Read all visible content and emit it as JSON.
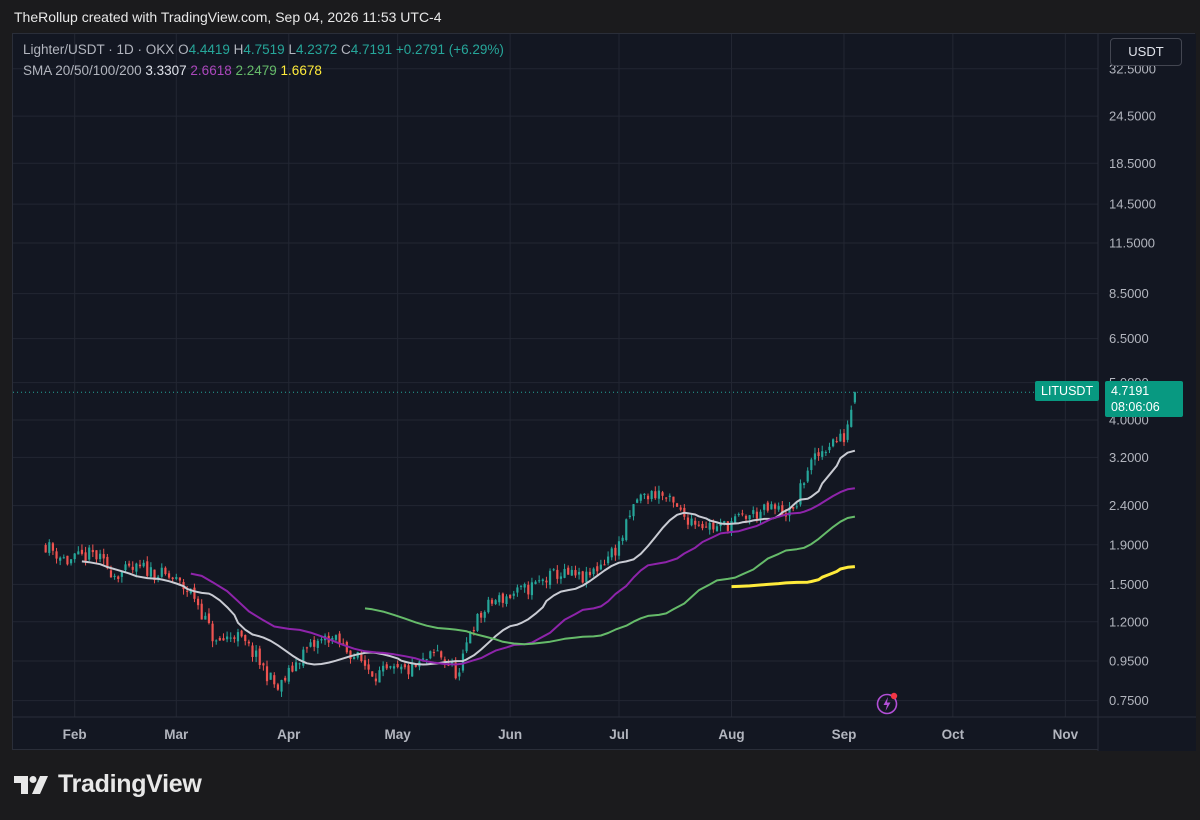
{
  "caption": "TheRollup created with TradingView.com, Sep 04, 2026 11:53 UTC-4",
  "legend": {
    "symbol": "Lighter/USDT · 1D · OKX",
    "open_label": "O",
    "open": "4.4419",
    "high_label": "H",
    "high": "4.7519",
    "low_label": "L",
    "low": "4.2372",
    "close_label": "C",
    "close": "4.7191",
    "change": "+0.2791 (+6.29%)",
    "sma_label": "SMA 20/50/100/200",
    "sma20": "3.3307",
    "sma50": "2.6618",
    "sma100": "2.2479",
    "sma200": "1.6678"
  },
  "currency_button": "USDT",
  "last_price": {
    "symbol": "LITUSDT",
    "price": "4.7191",
    "countdown": "08:06:06"
  },
  "brand": "TradingView",
  "colors": {
    "up": "#26a69a",
    "down": "#ef5350",
    "sma20": "#c9cbd3",
    "sma50": "#8e24aa",
    "sma100": "#66bb6a",
    "sma200": "#ffeb3b",
    "background": "#131722",
    "grid": "#232733"
  },
  "chart_data": {
    "type": "candlestick",
    "title": "Lighter/USDT · 1D · OKX",
    "y_scale": "log",
    "ylim": [
      0.68,
      40
    ],
    "y_ticks": [
      "32.5000",
      "24.5000",
      "18.5000",
      "14.5000",
      "11.5000",
      "8.5000",
      "6.5000",
      "5.0000",
      "4.0000",
      "3.2000",
      "2.4000",
      "1.9000",
      "1.5000",
      "1.2000",
      "0.9500",
      "0.7500"
    ],
    "x_ticks": [
      "Feb",
      "Mar",
      "Apr",
      "May",
      "Jun",
      "Jul",
      "Aug",
      "Sep",
      "Oct",
      "Nov"
    ],
    "x_range": [
      "2026-01-15",
      "2026-11-10"
    ],
    "close_anchors": [
      [
        "2026-01-24",
        1.9
      ],
      [
        "2026-01-30",
        1.72
      ],
      [
        "2026-02-06",
        1.8
      ],
      [
        "2026-02-12",
        1.6
      ],
      [
        "2026-02-20",
        1.65
      ],
      [
        "2026-02-28",
        1.55
      ],
      [
        "2026-03-06",
        1.4
      ],
      [
        "2026-03-12",
        1.05
      ],
      [
        "2026-03-17",
        1.12
      ],
      [
        "2026-03-22",
        1.0
      ],
      [
        "2026-03-29",
        0.8
      ],
      [
        "2026-04-05",
        1.0
      ],
      [
        "2026-04-12",
        1.1
      ],
      [
        "2026-04-18",
        1.0
      ],
      [
        "2026-04-25",
        0.88
      ],
      [
        "2026-05-05",
        0.9
      ],
      [
        "2026-05-12",
        1.0
      ],
      [
        "2026-05-18",
        0.87
      ],
      [
        "2026-05-21",
        1.15
      ],
      [
        "2026-05-27",
        1.35
      ],
      [
        "2026-06-05",
        1.45
      ],
      [
        "2026-06-14",
        1.6
      ],
      [
        "2026-06-22",
        1.55
      ],
      [
        "2026-07-01",
        1.9
      ],
      [
        "2026-07-06",
        2.5
      ],
      [
        "2026-07-12",
        2.6
      ],
      [
        "2026-07-19",
        2.25
      ],
      [
        "2026-07-28",
        2.1
      ],
      [
        "2026-08-05",
        2.25
      ],
      [
        "2026-08-12",
        2.35
      ],
      [
        "2026-08-18",
        2.3
      ],
      [
        "2026-08-22",
        3.0
      ],
      [
        "2026-08-28",
        3.5
      ],
      [
        "2026-09-01",
        3.6
      ],
      [
        "2026-09-04",
        4.7191
      ]
    ],
    "sma": [
      {
        "name": "SMA 20",
        "last": 3.3307,
        "points": [
          [
            "2026-02-03",
            1.72
          ],
          [
            "2026-02-24",
            1.55
          ],
          [
            "2026-03-10",
            1.42
          ],
          [
            "2026-03-24",
            1.1
          ],
          [
            "2026-04-08",
            0.93
          ],
          [
            "2026-04-24",
            1.0
          ],
          [
            "2026-05-08",
            0.93
          ],
          [
            "2026-05-19",
            0.95
          ],
          [
            "2026-06-03",
            1.18
          ],
          [
            "2026-06-17",
            1.45
          ],
          [
            "2026-07-03",
            1.72
          ],
          [
            "2026-07-19",
            2.3
          ],
          [
            "2026-07-31",
            2.15
          ],
          [
            "2026-08-12",
            2.22
          ],
          [
            "2026-08-22",
            2.5
          ],
          [
            "2026-09-04",
            3.3307
          ]
        ]
      },
      {
        "name": "SMA 50",
        "last": 2.6618,
        "points": [
          [
            "2026-03-05",
            1.6
          ],
          [
            "2026-04-01",
            1.15
          ],
          [
            "2026-04-25",
            1.0
          ],
          [
            "2026-05-17",
            0.93
          ],
          [
            "2026-06-05",
            1.05
          ],
          [
            "2026-06-24",
            1.3
          ],
          [
            "2026-07-12",
            1.7
          ],
          [
            "2026-08-01",
            2.05
          ],
          [
            "2026-08-20",
            2.3
          ],
          [
            "2026-09-04",
            2.6618
          ]
        ]
      },
      {
        "name": "SMA 100",
        "last": 2.2479,
        "points": [
          [
            "2026-04-22",
            1.3
          ],
          [
            "2026-05-15",
            1.15
          ],
          [
            "2026-06-05",
            1.05
          ],
          [
            "2026-06-24",
            1.1
          ],
          [
            "2026-07-12",
            1.25
          ],
          [
            "2026-07-31",
            1.55
          ],
          [
            "2026-08-19",
            1.85
          ],
          [
            "2026-09-04",
            2.2479
          ]
        ]
      },
      {
        "name": "SMA 200",
        "last": 1.6678,
        "points": [
          [
            "2026-08-01",
            1.48
          ],
          [
            "2026-08-22",
            1.52
          ],
          [
            "2026-09-04",
            1.6678
          ]
        ]
      }
    ],
    "last_price": 4.7191
  }
}
